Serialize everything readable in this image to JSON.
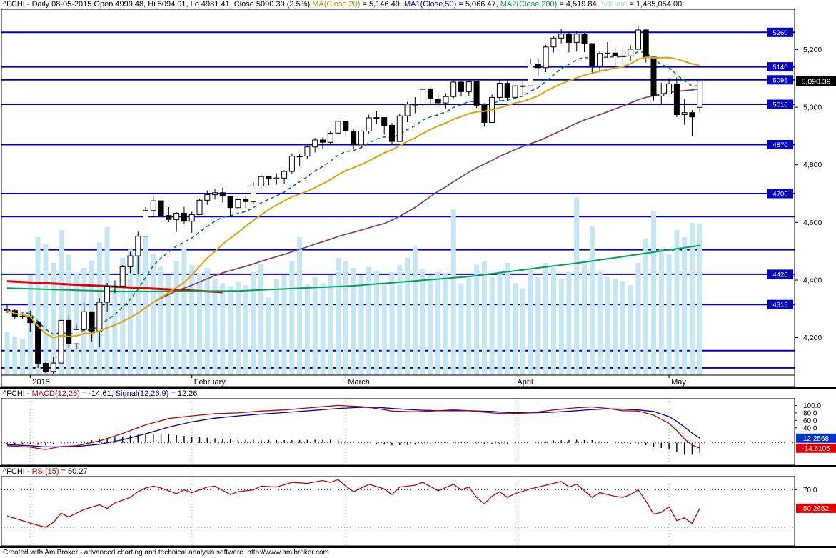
{
  "window": {
    "footer_text": "Created with AmiBroker - advanced charting and technical analysis software. http://www.amibroker.com"
  },
  "titles": {
    "main_prefix": "^FCHI - Daily 08-05-2015 Open 4999.48, Hi 5094.01, Lo 4981.41, Close 5090.39 (2.5%)",
    "ma20_name": "MA(Close,20)",
    "ma20_val": " = 5,146.49,",
    "ma50_name": "MA1(Close,50)",
    "ma50_val": " = 5,066.47,",
    "ma200_name": "MA2(Close,200)",
    "ma200_val": " = 4,519.84,",
    "vol_name": "Volume",
    "vol_val": " = 1,485,054.00",
    "macd_prefix": "^FCHI - ",
    "macd_name": "MACD(12,26)",
    "macd_val": " = -14.61,",
    "sig_name": "Signal(12,26,9)",
    "sig_val": " = 12.26",
    "rsi_prefix": "^FCHI - ",
    "rsi_name": "RSI(15)",
    "rsi_val": " = 50.27"
  },
  "colors": {
    "level_line": "#0000cd",
    "volume_bar": "#c4e6f6",
    "ma20": "#e0a500",
    "ma50": "#8e3a63",
    "ma200": "#00a550",
    "ema12": "#0a7d3c",
    "trendline": "#e80000",
    "candle_up": "#ffffff",
    "candle_down": "#000000",
    "macd_line": "#c00000",
    "signal_line": "#0000bb",
    "rsi_line": "#cc0000",
    "last_price_bg": "#000000",
    "box_blue": "#0033cc",
    "box_red": "#e00000",
    "title_ma20": "#c79102",
    "title_ma50": "#0000ff",
    "title_ma200": "#00a050",
    "title_volume": "#a8d8ef",
    "title_macd": "#cc0000",
    "title_signal": "#0000cc",
    "title_rsi": "#cc0000"
  },
  "chart_data": {
    "type": "candlestick",
    "symbol": "^FCHI",
    "timeframe": "Daily",
    "date": "08-05-2015",
    "ohlc_last": {
      "open": 4999.48,
      "high": 5094.01,
      "low": 4981.41,
      "close": 5090.39,
      "change_pct": "2.5%"
    },
    "last_price_label": "5,090.39",
    "x_axis": {
      "tick_indices": [
        3,
        24,
        44,
        66,
        86
      ],
      "tick_labels": [
        "2015",
        "February",
        "March",
        "April",
        "May"
      ]
    },
    "price_axis": {
      "min": 4070,
      "max": 5340,
      "ticks": [
        5200,
        5000,
        4800,
        4600,
        4400,
        4200
      ],
      "tick_labels": [
        "5,200",
        "5,000",
        "4,800",
        "4,600",
        "4,400",
        "4,200"
      ]
    },
    "levels": {
      "labeled": [
        5260,
        5140,
        5095,
        5010,
        4870,
        4700,
        4420,
        4315
      ],
      "unlabeled": [
        4620,
        4505,
        4155,
        4095
      ]
    },
    "volume_max": 1750,
    "bars": [
      [
        4299,
        4316,
        4286,
        4295,
        420
      ],
      [
        4294,
        4299,
        4263,
        4273,
        380
      ],
      [
        4275,
        4285,
        4265,
        4272,
        350
      ],
      [
        4272,
        4294,
        4220,
        4252,
        980
      ],
      [
        4252,
        4258,
        4095,
        4111,
        1350
      ],
      [
        4111,
        4118,
        4078,
        4083,
        1280
      ],
      [
        4083,
        4132,
        4075,
        4112,
        1100
      ],
      [
        4112,
        4263,
        4112,
        4260,
        1420
      ],
      [
        4260,
        4280,
        4164,
        4179,
        1180
      ],
      [
        4179,
        4245,
        4159,
        4228,
        990
      ],
      [
        4228,
        4322,
        4218,
        4290,
        1050
      ],
      [
        4290,
        4290,
        4187,
        4223,
        1120
      ],
      [
        4223,
        4337,
        4168,
        4323,
        1300
      ],
      [
        4323,
        4390,
        4290,
        4379,
        1450
      ],
      [
        4379,
        4399,
        4355,
        4379,
        870
      ],
      [
        4379,
        4452,
        4375,
        4446,
        1150
      ],
      [
        4446,
        4498,
        4424,
        4484,
        1230
      ],
      [
        4484,
        4568,
        4419,
        4552,
        1380
      ],
      [
        4552,
        4653,
        4552,
        4641,
        1520
      ],
      [
        4641,
        4691,
        4618,
        4675,
        1190
      ],
      [
        4675,
        4679,
        4608,
        4624,
        1060
      ],
      [
        4624,
        4653,
        4601,
        4610,
        980
      ],
      [
        4610,
        4635,
        4567,
        4632,
        1120
      ],
      [
        4632,
        4654,
        4596,
        4604,
        1240
      ],
      [
        4604,
        4637,
        4564,
        4627,
        1080
      ],
      [
        4627,
        4683,
        4627,
        4677,
        990
      ],
      [
        4677,
        4711,
        4661,
        4696,
        1050
      ],
      [
        4696,
        4717,
        4679,
        4703,
        940
      ],
      [
        4703,
        4721,
        4669,
        4691,
        900
      ],
      [
        4691,
        4691,
        4622,
        4651,
        870
      ],
      [
        4651,
        4693,
        4641,
        4679,
        920
      ],
      [
        4679,
        4694,
        4651,
        4672,
        880
      ],
      [
        4672,
        4739,
        4663,
        4726,
        1010
      ],
      [
        4726,
        4766,
        4715,
        4759,
        1090
      ],
      [
        4759,
        4762,
        4729,
        4751,
        760
      ],
      [
        4751,
        4770,
        4731,
        4754,
        940
      ],
      [
        4754,
        4781,
        4734,
        4777,
        980
      ],
      [
        4777,
        4840,
        4770,
        4830,
        1120
      ],
      [
        4830,
        4839,
        4795,
        4830,
        1350
      ],
      [
        4830,
        4870,
        4819,
        4862,
        890
      ],
      [
        4862,
        4893,
        4843,
        4886,
        960
      ],
      [
        4886,
        4896,
        4856,
        4878,
        900
      ],
      [
        4878,
        4918,
        4868,
        4910,
        980
      ],
      [
        4910,
        4958,
        4901,
        4951,
        1150
      ],
      [
        4951,
        4961,
        4902,
        4917,
        1120
      ],
      [
        4917,
        4926,
        4855,
        4869,
        1050
      ],
      [
        4869,
        4922,
        4855,
        4917,
        980
      ],
      [
        4917,
        4974,
        4906,
        4963,
        1060
      ],
      [
        4963,
        4987,
        4941,
        4964,
        1020
      ],
      [
        4964,
        4964,
        4905,
        4937,
        890
      ],
      [
        4937,
        4945,
        4871,
        4881,
        1010
      ],
      [
        4881,
        4976,
        4881,
        4970,
        1080
      ],
      [
        4970,
        5018,
        4948,
        5010,
        1150
      ],
      [
        5010,
        5035,
        4979,
        5010,
        1270
      ],
      [
        5010,
        5066,
        5004,
        5062,
        1040
      ],
      [
        5062,
        5068,
        5008,
        5029,
        980
      ],
      [
        5029,
        5044,
        4998,
        5015,
        1010
      ],
      [
        5015,
        5048,
        4996,
        5037,
        990
      ],
      [
        5037,
        5094,
        5031,
        5087,
        1630
      ],
      [
        5087,
        5090,
        5037,
        5054,
        900
      ],
      [
        5054,
        5093,
        5038,
        5088,
        950
      ],
      [
        5088,
        5091,
        4997,
        5007,
        1080
      ],
      [
        5007,
        5014,
        4932,
        4947,
        1120
      ],
      [
        4947,
        5044,
        4947,
        5034,
        960
      ],
      [
        5034,
        5095,
        5022,
        5083,
        1020
      ],
      [
        5083,
        5091,
        5021,
        5034,
        1100
      ],
      [
        5034,
        5080,
        5010,
        5074,
        900
      ],
      [
        5074,
        5091,
        5040,
        5074,
        850
      ],
      [
        5074,
        5167,
        5074,
        5150,
        1030
      ],
      [
        5150,
        5166,
        5110,
        5137,
        960
      ],
      [
        5137,
        5216,
        5122,
        5209,
        1100
      ],
      [
        5209,
        5248,
        5190,
        5240,
        1050
      ],
      [
        5240,
        5272,
        5222,
        5254,
        940
      ],
      [
        5254,
        5262,
        5190,
        5225,
        1010
      ],
      [
        5225,
        5263,
        5193,
        5254,
        1740
      ],
      [
        5254,
        5258,
        5191,
        5221,
        1090
      ],
      [
        5221,
        5221,
        5120,
        5143,
        1460
      ],
      [
        5143,
        5193,
        5121,
        5187,
        1020
      ],
      [
        5187,
        5226,
        5171,
        5188,
        960
      ],
      [
        5188,
        5208,
        5146,
        5178,
        940
      ],
      [
        5178,
        5205,
        5135,
        5178,
        920
      ],
      [
        5178,
        5215,
        5160,
        5201,
        880
      ],
      [
        5201,
        5283,
        5201,
        5268,
        1100
      ],
      [
        5268,
        5270,
        5155,
        5174,
        1340
      ],
      [
        5174,
        5175,
        5023,
        5039,
        1610
      ],
      [
        5039,
        5085,
        5011,
        5046,
        1230
      ],
      [
        5046,
        5101,
        5046,
        5081,
        1180
      ],
      [
        5081,
        5103,
        4966,
        4974,
        1420
      ],
      [
        4974,
        5030,
        4939,
        4981,
        1350
      ],
      [
        4981,
        4990,
        4901,
        4966,
        1490
      ],
      [
        4999.48,
        5094.01,
        4981.41,
        5090.39,
        1485
      ]
    ],
    "overlays": {
      "ma200_points": [
        [
          0,
          4372
        ],
        [
          15,
          4360
        ],
        [
          30,
          4362
        ],
        [
          45,
          4380
        ],
        [
          60,
          4412
        ],
        [
          75,
          4462
        ],
        [
          90,
          4520
        ]
      ],
      "trendline_points": [
        [
          0,
          4396
        ],
        [
          28,
          4358
        ]
      ]
    },
    "macd_panel": {
      "range": [
        -60,
        120
      ],
      "axis_ticks": [
        100,
        80,
        60,
        40
      ],
      "axis_tick_labels": [
        "100.0",
        "80.0",
        "60.0",
        "40.0"
      ],
      "macd_box": "-14.6105",
      "signal_box": "12.2568",
      "macd_points": [
        [
          0,
          -8
        ],
        [
          3,
          -12
        ],
        [
          5,
          -18
        ],
        [
          7,
          -10
        ],
        [
          9,
          -8
        ],
        [
          12,
          5
        ],
        [
          15,
          25
        ],
        [
          18,
          48
        ],
        [
          21,
          65
        ],
        [
          24,
          72
        ],
        [
          27,
          78
        ],
        [
          30,
          80
        ],
        [
          33,
          85
        ],
        [
          36,
          88
        ],
        [
          40,
          95
        ],
        [
          43,
          100
        ],
        [
          46,
          97
        ],
        [
          48,
          92
        ],
        [
          50,
          85
        ],
        [
          53,
          83
        ],
        [
          56,
          86
        ],
        [
          58,
          88
        ],
        [
          60,
          86
        ],
        [
          63,
          80
        ],
        [
          65,
          78
        ],
        [
          68,
          80
        ],
        [
          71,
          88
        ],
        [
          74,
          94
        ],
        [
          76,
          96
        ],
        [
          78,
          92
        ],
        [
          80,
          86
        ],
        [
          82,
          85
        ],
        [
          84,
          74
        ],
        [
          86,
          52
        ],
        [
          87,
          33
        ],
        [
          88,
          10
        ],
        [
          89,
          -6
        ],
        [
          90,
          -14.61
        ]
      ],
      "signal_points": [
        [
          0,
          -5
        ],
        [
          3,
          -8
        ],
        [
          5,
          -11
        ],
        [
          7,
          -11
        ],
        [
          9,
          -10
        ],
        [
          12,
          -4
        ],
        [
          15,
          8
        ],
        [
          18,
          24
        ],
        [
          21,
          42
        ],
        [
          24,
          56
        ],
        [
          27,
          66
        ],
        [
          30,
          72
        ],
        [
          33,
          77
        ],
        [
          36,
          81
        ],
        [
          40,
          87
        ],
        [
          43,
          92
        ],
        [
          46,
          95
        ],
        [
          48,
          95
        ],
        [
          50,
          92
        ],
        [
          53,
          88
        ],
        [
          56,
          86
        ],
        [
          58,
          86
        ],
        [
          60,
          86
        ],
        [
          63,
          84
        ],
        [
          65,
          81
        ],
        [
          68,
          80
        ],
        [
          71,
          82
        ],
        [
          74,
          86
        ],
        [
          76,
          89
        ],
        [
          78,
          91
        ],
        [
          80,
          90
        ],
        [
          82,
          88
        ],
        [
          84,
          84
        ],
        [
          86,
          70
        ],
        [
          87,
          58
        ],
        [
          88,
          42
        ],
        [
          89,
          26
        ],
        [
          90,
          12.26
        ]
      ]
    },
    "rsi_panel": {
      "range": [
        10,
        85
      ],
      "guides": [
        70,
        30
      ],
      "axis_ticks": [
        70
      ],
      "axis_tick_labels": [
        "70.0"
      ],
      "box": "50.2652",
      "points": [
        [
          0,
          42
        ],
        [
          2,
          37
        ],
        [
          4,
          32
        ],
        [
          5,
          30
        ],
        [
          6,
          35
        ],
        [
          7,
          45
        ],
        [
          8,
          41
        ],
        [
          10,
          49
        ],
        [
          12,
          54
        ],
        [
          13,
          50
        ],
        [
          14,
          56
        ],
        [
          16,
          62
        ],
        [
          17,
          68
        ],
        [
          18,
          72
        ],
        [
          19,
          74
        ],
        [
          20,
          72
        ],
        [
          22,
          66
        ],
        [
          23,
          70
        ],
        [
          24,
          67
        ],
        [
          26,
          73
        ],
        [
          27,
          74
        ],
        [
          29,
          65
        ],
        [
          30,
          68
        ],
        [
          32,
          70
        ],
        [
          33,
          74
        ],
        [
          35,
          73
        ],
        [
          37,
          78
        ],
        [
          39,
          77
        ],
        [
          41,
          80
        ],
        [
          42,
          78
        ],
        [
          43,
          81
        ],
        [
          44,
          74
        ],
        [
          45,
          68
        ],
        [
          47,
          76
        ],
        [
          49,
          71
        ],
        [
          50,
          65
        ],
        [
          51,
          73
        ],
        [
          53,
          75
        ],
        [
          54,
          78
        ],
        [
          56,
          69
        ],
        [
          58,
          76
        ],
        [
          59,
          70
        ],
        [
          60,
          73
        ],
        [
          61,
          62
        ],
        [
          62,
          55
        ],
        [
          63,
          63
        ],
        [
          64,
          68
        ],
        [
          65,
          62
        ],
        [
          66,
          66
        ],
        [
          68,
          71
        ],
        [
          70,
          75
        ],
        [
          72,
          79
        ],
        [
          73,
          73
        ],
        [
          74,
          76
        ],
        [
          76,
          62
        ],
        [
          77,
          67
        ],
        [
          79,
          63
        ],
        [
          80,
          62
        ],
        [
          81,
          65
        ],
        [
          82,
          70
        ],
        [
          83,
          58
        ],
        [
          84,
          44
        ],
        [
          85,
          46
        ],
        [
          86,
          52
        ],
        [
          87,
          37
        ],
        [
          88,
          40
        ],
        [
          89,
          34
        ],
        [
          90,
          50.27
        ]
      ]
    }
  }
}
